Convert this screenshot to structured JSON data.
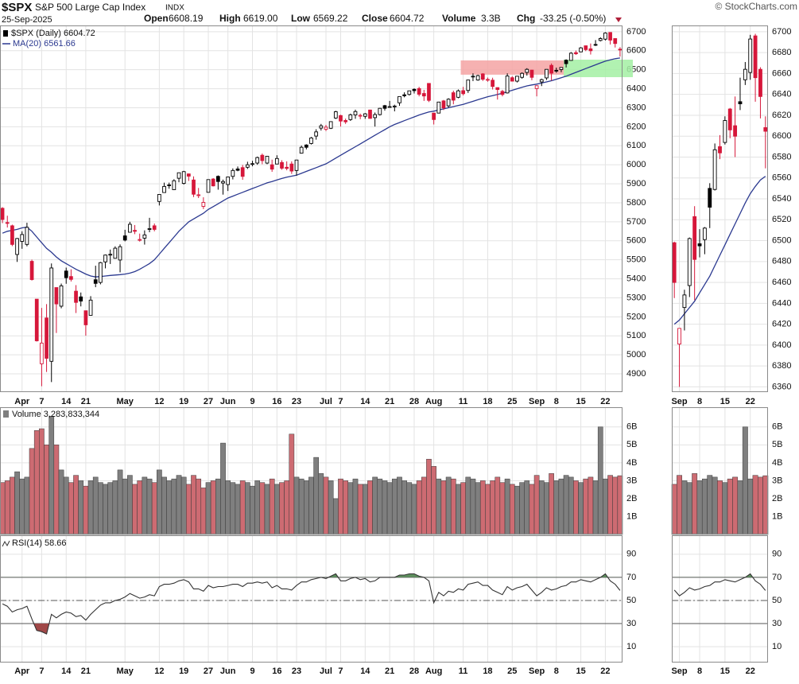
{
  "header": {
    "symbol": "$SPX",
    "name": "S&P 500 Large Cap Index",
    "exchange": "INDX",
    "date": "25-Sep-2025",
    "fields": [
      {
        "label": "Open",
        "value": "6608.19"
      },
      {
        "label": "High",
        "value": "6619.00"
      },
      {
        "label": "Low",
        "value": "6569.22"
      },
      {
        "label": "Close",
        "value": "6604.72"
      },
      {
        "label": "Volume",
        "value": "3.3B"
      },
      {
        "label": "Chg",
        "value": "-33.25 (-0.50%)"
      }
    ],
    "credit": "© StockCharts.com"
  },
  "chart_data": {
    "type": "candlestick",
    "legend": "$SPX (Daily) 6604.72",
    "up_color": "#000000",
    "down_color": "#d6173a",
    "grid": true,
    "categories": [
      null,
      null,
      null,
      null,
      "Apr",
      null,
      null,
      null,
      "7",
      null,
      null,
      null,
      null,
      "14",
      null,
      null,
      null,
      "21",
      null,
      null,
      null,
      null,
      null,
      null,
      null,
      "May",
      null,
      null,
      null,
      null,
      null,
      null,
      "12",
      null,
      null,
      null,
      null,
      "19",
      null,
      null,
      null,
      null,
      "27",
      null,
      null,
      null,
      "Jun",
      null,
      null,
      null,
      null,
      "9",
      null,
      null,
      null,
      null,
      "16",
      null,
      null,
      null,
      "23",
      null,
      null,
      null,
      null,
      null,
      "Jul",
      null,
      null,
      "7",
      null,
      null,
      null,
      null,
      "14",
      null,
      null,
      null,
      null,
      "21",
      null,
      null,
      null,
      null,
      "28",
      null,
      null,
      null,
      "Aug",
      null,
      null,
      null,
      null,
      null,
      "11",
      null,
      null,
      null,
      null,
      "18",
      null,
      null,
      null,
      null,
      "25",
      null,
      null,
      null,
      null,
      "Sep",
      null,
      null,
      null,
      "8",
      null,
      null,
      null,
      null,
      "15",
      null,
      null,
      null,
      null,
      "22",
      null,
      null,
      null
    ],
    "ohlc": [
      [
        5771,
        5777,
        5693,
        5712
      ],
      [
        5696,
        5732,
        5670,
        5693
      ],
      [
        5679,
        5685,
        5572,
        5581
      ],
      [
        5528,
        5615,
        5489,
        5612
      ],
      [
        5597,
        5650,
        5558,
        5633
      ],
      [
        5581,
        5695,
        5571,
        5671
      ],
      [
        5492,
        5501,
        5391,
        5396
      ],
      [
        5293,
        5293,
        5070,
        5074
      ],
      [
        4953,
        5247,
        4835,
        5062
      ],
      [
        5194,
        5267,
        4910,
        4982
      ],
      [
        4966,
        5481,
        4857,
        5457
      ],
      [
        5354,
        5354,
        5115,
        5268
      ],
      [
        5256,
        5375,
        5245,
        5363
      ],
      [
        5441,
        5459,
        5374,
        5406
      ],
      [
        5412,
        5450,
        5386,
        5397
      ],
      [
        5335,
        5367,
        5220,
        5276
      ],
      [
        5305,
        5328,
        5255,
        5283
      ],
      [
        5232,
        5232,
        5101,
        5158
      ],
      [
        5208,
        5309,
        5208,
        5288
      ],
      [
        5395,
        5469,
        5356,
        5376
      ],
      [
        5381,
        5489,
        5371,
        5485
      ],
      [
        5489,
        5528,
        5455,
        5525
      ],
      [
        5529,
        5554,
        5478,
        5529
      ],
      [
        5508,
        5571,
        5506,
        5561
      ],
      [
        5499,
        5581,
        5434,
        5569
      ],
      [
        5626,
        5658,
        5597,
        5604
      ],
      [
        5645,
        5700,
        5644,
        5687
      ],
      [
        5655,
        5683,
        5635,
        5650
      ],
      [
        5605,
        5638,
        5596,
        5607
      ],
      [
        5614,
        5655,
        5580,
        5631
      ],
      [
        5663,
        5721,
        5645,
        5664
      ],
      [
        5679,
        5691,
        5650,
        5660
      ],
      [
        5807,
        5845,
        5786,
        5844
      ],
      [
        5854,
        5906,
        5853,
        5886
      ],
      [
        5894,
        5906,
        5874,
        5892
      ],
      [
        5869,
        5924,
        5868,
        5916
      ],
      [
        5929,
        5958,
        5908,
        5958
      ],
      [
        5902,
        5968,
        5896,
        5964
      ],
      [
        5952,
        5954,
        5915,
        5940
      ],
      [
        5920,
        5939,
        5830,
        5845
      ],
      [
        5842,
        5878,
        5825,
        5842
      ],
      [
        5781,
        5829,
        5767,
        5802
      ],
      [
        5855,
        5922,
        5854,
        5922
      ],
      [
        5925,
        5930,
        5886,
        5889
      ],
      [
        5939,
        5944,
        5869,
        5912
      ],
      [
        5904,
        5922,
        5843,
        5912
      ],
      [
        5896,
        5937,
        5862,
        5936
      ],
      [
        5939,
        5981,
        5923,
        5970
      ],
      [
        5978,
        5991,
        5966,
        5971
      ],
      [
        5985,
        5999,
        5921,
        5939
      ],
      [
        5987,
        6016,
        5978,
        6000
      ],
      [
        6004,
        6021,
        5992,
        6006
      ],
      [
        6009,
        6043,
        6000,
        6038
      ],
      [
        6050,
        6059,
        6003,
        6022
      ],
      [
        6009,
        6045,
        6003,
        6045
      ],
      [
        6000,
        6027,
        5963,
        5977
      ],
      [
        6004,
        6050,
        6004,
        6033
      ],
      [
        6012,
        6024,
        5974,
        5982
      ],
      [
        5987,
        6018,
        5971,
        5981
      ],
      [
        6004,
        6018,
        5952,
        5967
      ],
      [
        5970,
        6025,
        5943,
        6025
      ],
      [
        6061,
        6101,
        6059,
        6092
      ],
      [
        6104,
        6108,
        6081,
        6092
      ],
      [
        6112,
        6146,
        6107,
        6141
      ],
      [
        6151,
        6187,
        6132,
        6173
      ],
      [
        6193,
        6215,
        6180,
        6205
      ],
      [
        6187,
        6210,
        6177,
        6198
      ],
      [
        6192,
        6227,
        6188,
        6227
      ],
      [
        6246,
        6284,
        6241,
        6279
      ],
      [
        6259,
        6263,
        6201,
        6230
      ],
      [
        6233,
        6243,
        6215,
        6226
      ],
      [
        6238,
        6269,
        6231,
        6263
      ],
      [
        6262,
        6290,
        6242,
        6280
      ],
      [
        6256,
        6269,
        6240,
        6260
      ],
      [
        6255,
        6272,
        6242,
        6268
      ],
      [
        6288,
        6290,
        6242,
        6244
      ],
      [
        6248,
        6275,
        6201,
        6264
      ],
      [
        6264,
        6299,
        6259,
        6297
      ],
      [
        6311,
        6315,
        6285,
        6297
      ],
      [
        6304,
        6336,
        6303,
        6306
      ],
      [
        6306,
        6316,
        6281,
        6309
      ],
      [
        6326,
        6360,
        6310,
        6359
      ],
      [
        6368,
        6381,
        6355,
        6363
      ],
      [
        6370,
        6390,
        6364,
        6389
      ],
      [
        6397,
        6402,
        6375,
        6390
      ],
      [
        6401,
        6410,
        6360,
        6371
      ],
      [
        6375,
        6394,
        6336,
        6362
      ],
      [
        6428,
        6428,
        6330,
        6339
      ],
      [
        6272,
        6272,
        6212,
        6238
      ],
      [
        6272,
        6330,
        6272,
        6330
      ],
      [
        6336,
        6341,
        6288,
        6299
      ],
      [
        6310,
        6350,
        6301,
        6345
      ],
      [
        6379,
        6390,
        6318,
        6340
      ],
      [
        6355,
        6396,
        6350,
        6389
      ],
      [
        6390,
        6410,
        6365,
        6374
      ],
      [
        6391,
        6446,
        6378,
        6446
      ],
      [
        6462,
        6481,
        6440,
        6466
      ],
      [
        6446,
        6474,
        6442,
        6469
      ],
      [
        6478,
        6482,
        6441,
        6450
      ],
      [
        6446,
        6459,
        6437,
        6449
      ],
      [
        6445,
        6458,
        6396,
        6412
      ],
      [
        6406,
        6407,
        6343,
        6396
      ],
      [
        6386,
        6394,
        6360,
        6370
      ],
      [
        6378,
        6481,
        6375,
        6467
      ],
      [
        6458,
        6466,
        6438,
        6440
      ],
      [
        6440,
        6466,
        6433,
        6466
      ],
      [
        6460,
        6486,
        6453,
        6481
      ],
      [
        6486,
        6508,
        6469,
        6502
      ],
      [
        6498,
        6499,
        6445,
        6460
      ],
      [
        6401,
        6416,
        6360,
        6416
      ],
      [
        6436,
        6453,
        6414,
        6448
      ],
      [
        6457,
        6503,
        6446,
        6502
      ],
      [
        6523,
        6533,
        6443,
        6482
      ],
      [
        6497,
        6511,
        6484,
        6495
      ],
      [
        6501,
        6513,
        6487,
        6512
      ],
      [
        6550,
        6555,
        6512,
        6532
      ],
      [
        6549,
        6593,
        6548,
        6587
      ],
      [
        6590,
        6601,
        6578,
        6584
      ],
      [
        6594,
        6619,
        6592,
        6615
      ],
      [
        6626,
        6627,
        6598,
        6606
      ],
      [
        6610,
        6638,
        6580,
        6600
      ],
      [
        6633,
        6656,
        6625,
        6631
      ],
      [
        6654,
        6671,
        6649,
        6664
      ],
      [
        6661,
        6697,
        6654,
        6693
      ],
      [
        6696,
        6698,
        6633,
        6656
      ],
      [
        6664,
        6666,
        6617,
        6638
      ],
      [
        6608.19,
        6619,
        6569.22,
        6604.72
      ]
    ],
    "ylim": [
      4804,
      6733
    ],
    "yticks": [
      4900,
      5000,
      5100,
      5200,
      5300,
      5400,
      5500,
      5600,
      5700,
      5800,
      5900,
      6000,
      6100,
      6200,
      6300,
      6400,
      6500,
      6600,
      6700
    ],
    "ma": {
      "name": "MA(20) 6561.66",
      "color": "#2b3990",
      "values": [
        5640,
        5650,
        5655,
        5660,
        5668,
        5672,
        5650,
        5620,
        5590,
        5560,
        5540,
        5515,
        5495,
        5480,
        5465,
        5450,
        5438,
        5425,
        5415,
        5410,
        5412,
        5415,
        5418,
        5420,
        5422,
        5425,
        5430,
        5438,
        5450,
        5465,
        5480,
        5500,
        5530,
        5560,
        5590,
        5620,
        5650,
        5675,
        5700,
        5715,
        5730,
        5745,
        5765,
        5780,
        5795,
        5810,
        5825,
        5835,
        5845,
        5855,
        5865,
        5875,
        5885,
        5895,
        5905,
        5912,
        5920,
        5928,
        5935,
        5940,
        5945,
        5955,
        5965,
        5975,
        5985,
        5995,
        6005,
        6020,
        6035,
        6050,
        6065,
        6080,
        6095,
        6110,
        6125,
        6140,
        6155,
        6170,
        6185,
        6200,
        6212,
        6222,
        6232,
        6242,
        6252,
        6262,
        6270,
        6278,
        6282,
        6288,
        6294,
        6300,
        6306,
        6312,
        6318,
        6326,
        6334,
        6342,
        6350,
        6358,
        6364,
        6370,
        6376,
        6384,
        6392,
        6400,
        6408,
        6415,
        6420,
        6424,
        6430,
        6436,
        6442,
        6450,
        6458,
        6466,
        6476,
        6486,
        6496,
        6506,
        6516,
        6526,
        6536,
        6545,
        6552,
        6558,
        6561.66
      ]
    },
    "zones": [
      {
        "start": 94,
        "end": 115,
        "low": 6474,
        "high": 6549,
        "color": "#f4a3a3"
      },
      {
        "start": 115,
        "end": 126,
        "low": 6461,
        "high": 6553,
        "color": "#a3f0a3"
      }
    ],
    "volume": {
      "title": "Volume 3,283,833,344",
      "up_color": "#7f7f7f",
      "down_color": "#cd6b72",
      "values": [
        2.9,
        3.0,
        3.2,
        3.5,
        3.1,
        3.2,
        4.8,
        5.8,
        5.9,
        5.0,
        6.6,
        5.0,
        3.6,
        3.2,
        2.9,
        3.3,
        3.0,
        2.7,
        3.0,
        3.2,
        2.9,
        2.8,
        2.9,
        3.0,
        3.6,
        3.1,
        3.3,
        2.8,
        3.0,
        3.2,
        3.1,
        2.9,
        3.6,
        3.2,
        3.0,
        3.1,
        3.3,
        3.2,
        2.8,
        3.3,
        3.1,
        2.6,
        2.9,
        3.0,
        3.1,
        5.1,
        3.0,
        2.9,
        2.8,
        3.0,
        2.9,
        2.7,
        3.0,
        2.9,
        2.8,
        3.1,
        2.8,
        2.9,
        3.0,
        5.6,
        3.2,
        3.1,
        3.0,
        3.2,
        4.3,
        3.4,
        3.2,
        3.0,
        2.0,
        3.1,
        3.0,
        2.9,
        3.1,
        2.8,
        2.8,
        3.0,
        3.2,
        3.1,
        3.0,
        2.9,
        3.1,
        3.2,
        3.0,
        2.9,
        2.8,
        3.0,
        3.2,
        4.2,
        3.8,
        3.1,
        3.0,
        3.2,
        3.1,
        2.8,
        2.9,
        3.2,
        3.1,
        2.9,
        3.0,
        2.8,
        3.0,
        3.2,
        2.9,
        3.1,
        2.8,
        2.7,
        2.9,
        3.0,
        2.8,
        3.3,
        3.0,
        2.9,
        3.4,
        3.0,
        3.1,
        3.3,
        3.2,
        3.0,
        2.9,
        3.1,
        3.2,
        3.0,
        6.0,
        3.1,
        3.3,
        3.2,
        3.28
      ],
      "ylim": [
        0,
        7.1
      ],
      "yticks": [
        {
          "value": 1,
          "label": "1B"
        },
        {
          "value": 2,
          "label": "2B"
        },
        {
          "value": 3,
          "label": "3B"
        },
        {
          "value": 4,
          "label": "4B"
        },
        {
          "value": 5,
          "label": "5B"
        },
        {
          "value": 6,
          "label": "6B"
        }
      ]
    },
    "rsi": {
      "title": "RSI(14) 58.66",
      "color": "#333333",
      "overbought_color": "#5e8f5e",
      "oversold_color": "#a04848",
      "values": [
        47,
        45,
        40,
        42,
        43,
        45,
        34,
        24,
        23,
        21,
        38,
        35,
        38,
        40,
        39,
        36,
        37,
        33,
        38,
        42,
        46,
        48,
        48,
        50,
        51,
        53,
        56,
        54,
        52,
        53,
        55,
        54,
        62,
        64,
        64,
        65,
        67,
        68,
        66,
        60,
        60,
        58,
        63,
        61,
        62,
        62,
        63,
        64,
        64,
        62,
        65,
        65,
        66,
        65,
        66,
        61,
        63,
        60,
        60,
        59,
        63,
        66,
        66,
        68,
        69,
        70,
        69,
        71,
        73,
        67,
        67,
        69,
        70,
        68,
        69,
        66,
        67,
        70,
        70,
        70,
        70,
        72,
        72,
        73,
        73,
        71,
        70,
        67,
        48,
        57,
        54,
        58,
        57,
        60,
        59,
        64,
        65,
        66,
        63,
        63,
        59,
        57,
        55,
        62,
        59,
        61,
        62,
        64,
        59,
        54,
        57,
        61,
        59,
        60,
        62,
        63,
        66,
        66,
        68,
        67,
        66,
        68,
        70,
        73,
        67,
        64,
        58.66
      ],
      "ylim": [
        -3.7,
        106.4
      ],
      "yticks": [
        10,
        30,
        50,
        70,
        90
      ],
      "levels": [
        70,
        50,
        30
      ]
    },
    "zoom": {
      "categories": [
        null,
        "Sep",
        null,
        null,
        null,
        "8",
        null,
        null,
        null,
        null,
        "15",
        null,
        null,
        null,
        null,
        "22",
        null,
        null,
        null
      ],
      "ylim": [
        6355,
        6706
      ],
      "yticks": [
        6360,
        6380,
        6400,
        6420,
        6440,
        6460,
        6480,
        6500,
        6520,
        6540,
        6560,
        6580,
        6600,
        6620,
        6640,
        6660,
        6680,
        6700
      ]
    }
  }
}
